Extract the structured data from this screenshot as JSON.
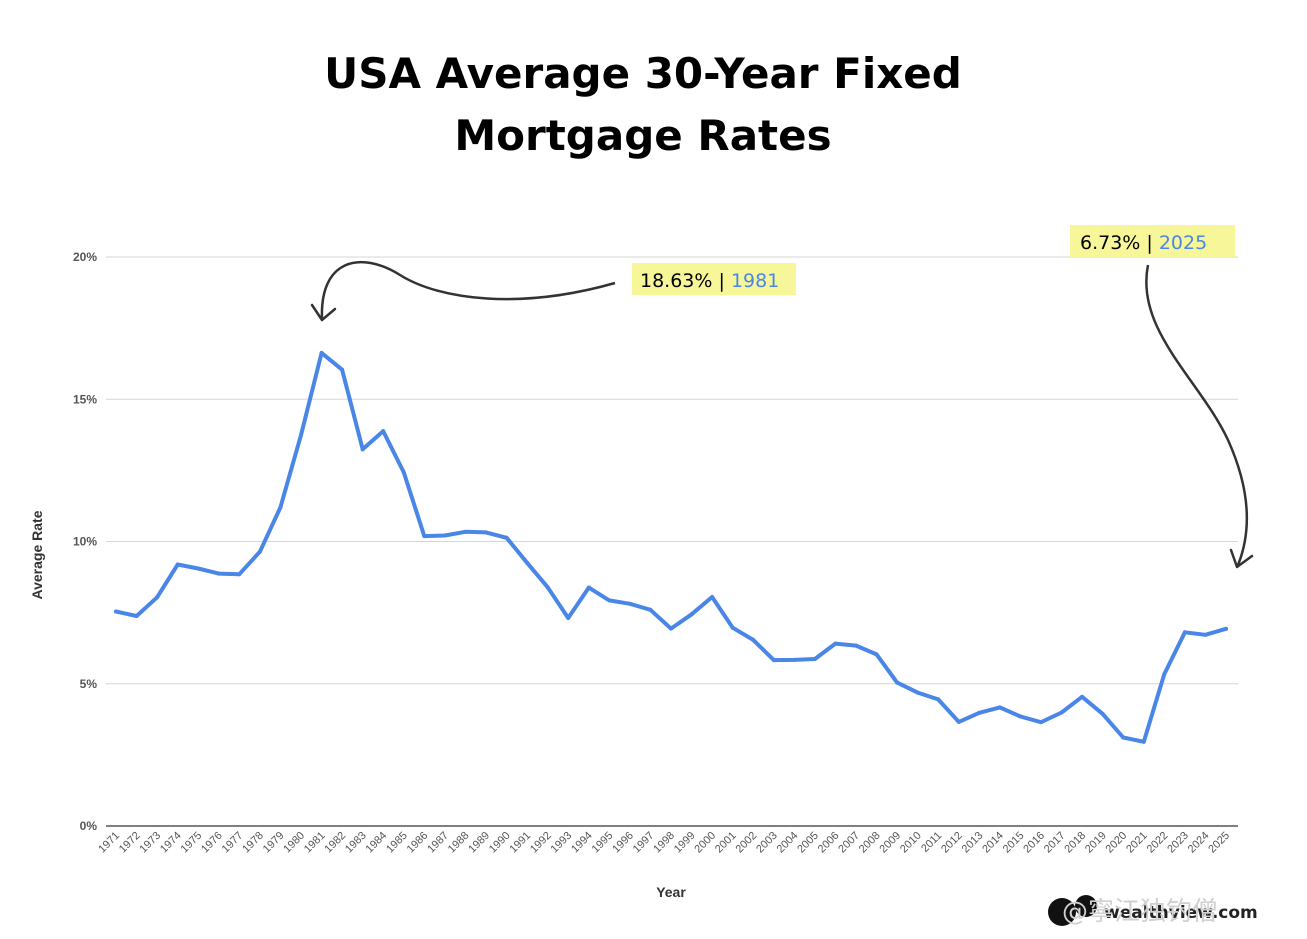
{
  "chart_data": {
    "type": "line",
    "title_lines": [
      "USA Average 30-Year Fixed",
      "Mortgage Rates"
    ],
    "xlabel": "Year",
    "ylabel": "Average Rate",
    "ylim": [
      0,
      20
    ],
    "yticks": [
      "0%",
      "5%",
      "10%",
      "15%",
      "20%"
    ],
    "grid": true,
    "series_color": "#4a86e8",
    "categories": [
      "1971",
      "1972",
      "1973",
      "1974",
      "1975",
      "1976",
      "1977",
      "1978",
      "1979",
      "1980",
      "1981",
      "1982",
      "1983",
      "1984",
      "1985",
      "1986",
      "1987",
      "1988",
      "1989",
      "1990",
      "1991",
      "1992",
      "1993",
      "1994",
      "1995",
      "1996",
      "1997",
      "1998",
      "1999",
      "2000",
      "2001",
      "2002",
      "2003",
      "2004",
      "2005",
      "2006",
      "2007",
      "2008",
      "2009",
      "2010",
      "2011",
      "2012",
      "2013",
      "2014",
      "2015",
      "2016",
      "2017",
      "2018",
      "2019",
      "2020",
      "2021",
      "2022",
      "2023",
      "2024",
      "2025"
    ],
    "series": [
      {
        "values": [
          7.54,
          7.38,
          8.04,
          9.19,
          9.05,
          8.87,
          8.85,
          9.64,
          11.2,
          13.74,
          16.63,
          16.04,
          13.24,
          13.88,
          12.43,
          10.19,
          10.21,
          10.34,
          10.32,
          10.13,
          9.25,
          8.39,
          7.31,
          8.38,
          7.93,
          7.81,
          7.6,
          6.94,
          7.44,
          8.05,
          6.97,
          6.54,
          5.83,
          5.84,
          5.87,
          6.41,
          6.34,
          6.03,
          5.04,
          4.69,
          4.45,
          3.66,
          3.98,
          4.17,
          3.85,
          3.65,
          3.99,
          4.54,
          3.94,
          3.11,
          2.96,
          5.34,
          6.81,
          6.72,
          6.93
        ]
      }
    ],
    "annotations": [
      {
        "value": "18.63%",
        "sep": " | ",
        "year": "1981",
        "highlight": "#f7f79a"
      },
      {
        "value": "6.73%",
        "sep": " | ",
        "year": "2025",
        "highlight": "#f7f79a"
      }
    ]
  },
  "watermark": {
    "text": "@寧江独钓僧",
    "site": "wealthview.com"
  }
}
